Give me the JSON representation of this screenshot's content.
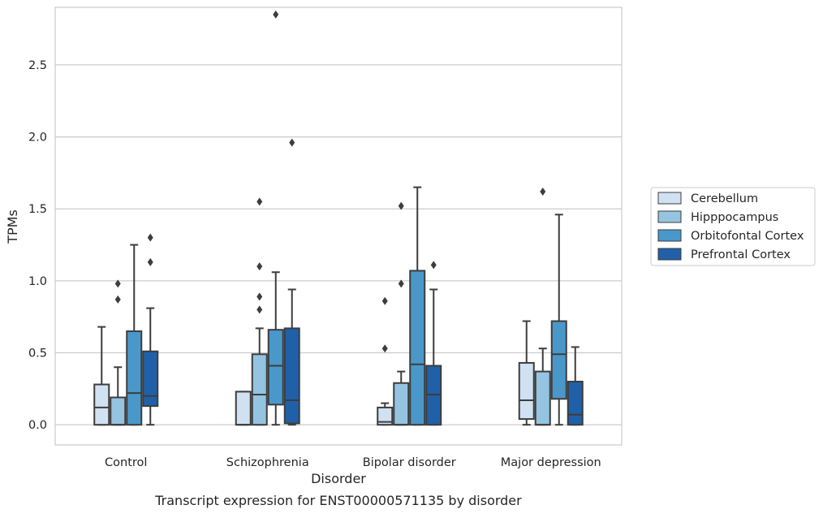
{
  "caption": "Transcript expression for ENST00000571135 by disorder",
  "chart_data": {
    "type": "box",
    "title": "",
    "xlabel": "Disorder",
    "ylabel": "TPMs",
    "ylim": [
      -0.14,
      2.9
    ],
    "yticks": [
      0.0,
      0.5,
      1.0,
      1.5,
      2.0,
      2.5
    ],
    "ytick_labels": [
      "0.0",
      "0.5",
      "1.0",
      "1.5",
      "2.0",
      "2.5"
    ],
    "grid": "horizontal",
    "legend_position": "right",
    "categories": [
      "Control",
      "Schizophrenia",
      "Bipolar disorder",
      "Major depression"
    ],
    "series": [
      {
        "name": "Cerebellum",
        "color": "#d0e1f2",
        "boxes": [
          {
            "whislo": 0.0,
            "q1": 0.0,
            "med": 0.12,
            "q3": 0.28,
            "whishi": 0.68,
            "fliers": []
          },
          {
            "whislo": 0.0,
            "q1": 0.0,
            "med": 0.0,
            "q3": 0.23,
            "whishi": 0.23,
            "fliers": []
          },
          {
            "whislo": 0.0,
            "q1": 0.0,
            "med": 0.02,
            "q3": 0.12,
            "whishi": 0.15,
            "fliers": [
              0.53,
              0.86
            ]
          },
          {
            "whislo": 0.0,
            "q1": 0.04,
            "med": 0.17,
            "q3": 0.43,
            "whishi": 0.72,
            "fliers": []
          }
        ]
      },
      {
        "name": "Hipppocampus",
        "color": "#94c4df",
        "boxes": [
          {
            "whislo": 0.0,
            "q1": 0.0,
            "med": 0.0,
            "q3": 0.19,
            "whishi": 0.4,
            "fliers": [
              0.87,
              0.98
            ]
          },
          {
            "whislo": 0.0,
            "q1": 0.0,
            "med": 0.21,
            "q3": 0.49,
            "whishi": 0.67,
            "fliers": [
              0.8,
              0.89,
              1.1,
              1.55
            ]
          },
          {
            "whislo": 0.0,
            "q1": 0.0,
            "med": 0.0,
            "q3": 0.29,
            "whishi": 0.37,
            "fliers": [
              0.98,
              1.52
            ]
          },
          {
            "whislo": 0.0,
            "q1": 0.0,
            "med": 0.0,
            "q3": 0.37,
            "whishi": 0.53,
            "fliers": [
              1.62
            ]
          }
        ]
      },
      {
        "name": "Orbitofontal Cortex",
        "color": "#4a98c9",
        "boxes": [
          {
            "whislo": 0.0,
            "q1": 0.0,
            "med": 0.22,
            "q3": 0.65,
            "whishi": 1.25,
            "fliers": []
          },
          {
            "whislo": 0.0,
            "q1": 0.14,
            "med": 0.41,
            "q3": 0.66,
            "whishi": 1.06,
            "fliers": [
              2.85
            ]
          },
          {
            "whislo": 0.0,
            "q1": 0.0,
            "med": 0.42,
            "q3": 1.07,
            "whishi": 1.65,
            "fliers": []
          },
          {
            "whislo": 0.0,
            "q1": 0.18,
            "med": 0.49,
            "q3": 0.72,
            "whishi": 1.46,
            "fliers": []
          }
        ]
      },
      {
        "name": "Prefrontal Cortex",
        "color": "#2060a8",
        "boxes": [
          {
            "whislo": 0.0,
            "q1": 0.13,
            "med": 0.2,
            "q3": 0.51,
            "whishi": 0.81,
            "fliers": [
              1.13,
              1.3
            ]
          },
          {
            "whislo": 0.0,
            "q1": 0.01,
            "med": 0.17,
            "q3": 0.67,
            "whishi": 0.94,
            "fliers": [
              1.96
            ]
          },
          {
            "whislo": 0.0,
            "q1": 0.0,
            "med": 0.21,
            "q3": 0.41,
            "whishi": 0.94,
            "fliers": [
              1.11
            ]
          },
          {
            "whislo": 0.0,
            "q1": 0.0,
            "med": 0.07,
            "q3": 0.3,
            "whishi": 0.54,
            "fliers": []
          }
        ]
      }
    ]
  }
}
